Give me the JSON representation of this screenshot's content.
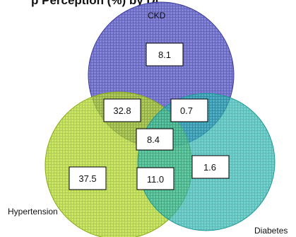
{
  "title": "p  Perception (%) by Di",
  "sets": {
    "ckd": {
      "label": "CKD",
      "color": "#6f6fd0"
    },
    "hypertension": {
      "label": "Hypertension",
      "color": "#b8dd2a"
    },
    "diabetes": {
      "label": "Diabetes",
      "color": "#2bbdb8"
    }
  },
  "regions": {
    "ckd_only": "8.1",
    "ckd_hypertension": "32.8",
    "ckd_diabetes": "0.7",
    "all_three": "8.4",
    "hypertension_only": "37.5",
    "hypertension_diabetes": "11.0",
    "diabetes_only": "1.6"
  }
}
